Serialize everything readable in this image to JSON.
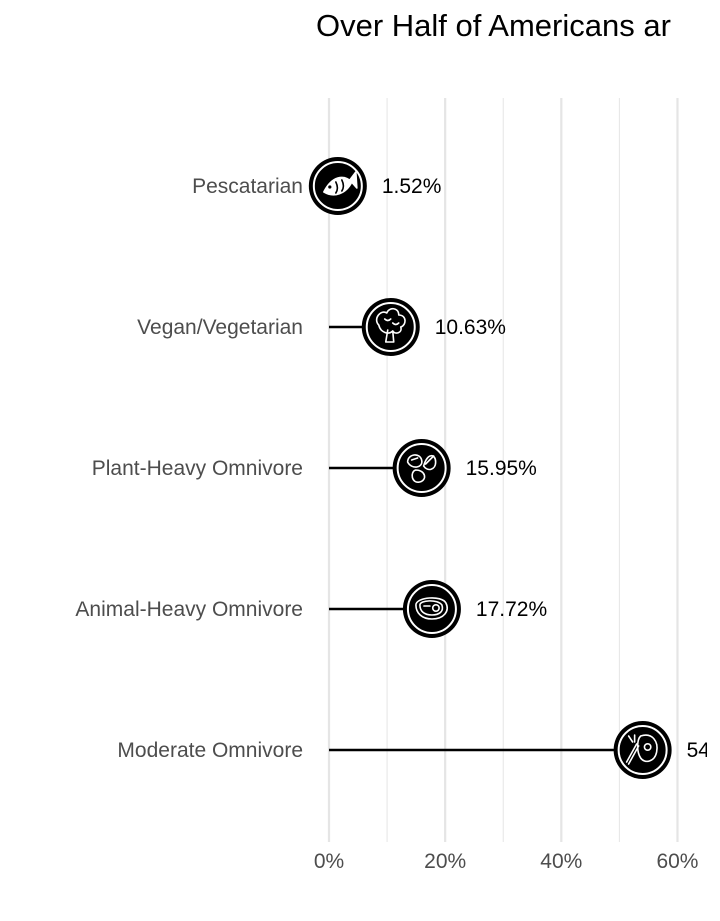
{
  "chart_data": {
    "type": "lollipop",
    "title": "Over Half of Americans ar",
    "xlabel": "",
    "ylabel": "",
    "xlim": [
      0,
      60
    ],
    "x_ticks": [
      0,
      20,
      40,
      60
    ],
    "x_tick_labels": [
      "0%",
      "20%",
      "40%",
      "60%"
    ],
    "grid": true,
    "categories": [
      "Pescatarian",
      "Vegan/Vegetarian",
      "Plant-Heavy Omnivore",
      "Animal-Heavy Omnivore",
      "Moderate Omnivore"
    ],
    "values": [
      1.52,
      10.63,
      15.95,
      17.72,
      54
    ],
    "value_labels": [
      "1.52%",
      "10.63%",
      "15.95%",
      "17.72%",
      "54"
    ],
    "icons": [
      "fish-icon",
      "broccoli-icon",
      "vegetables-icon",
      "steak-icon",
      "mixed-food-icon"
    ]
  },
  "colors": {
    "line": "#000000",
    "marker_fill": "#000000",
    "grid": "#e5e5e5",
    "label_text": "#4d4d4d",
    "value_text": "#000000"
  }
}
